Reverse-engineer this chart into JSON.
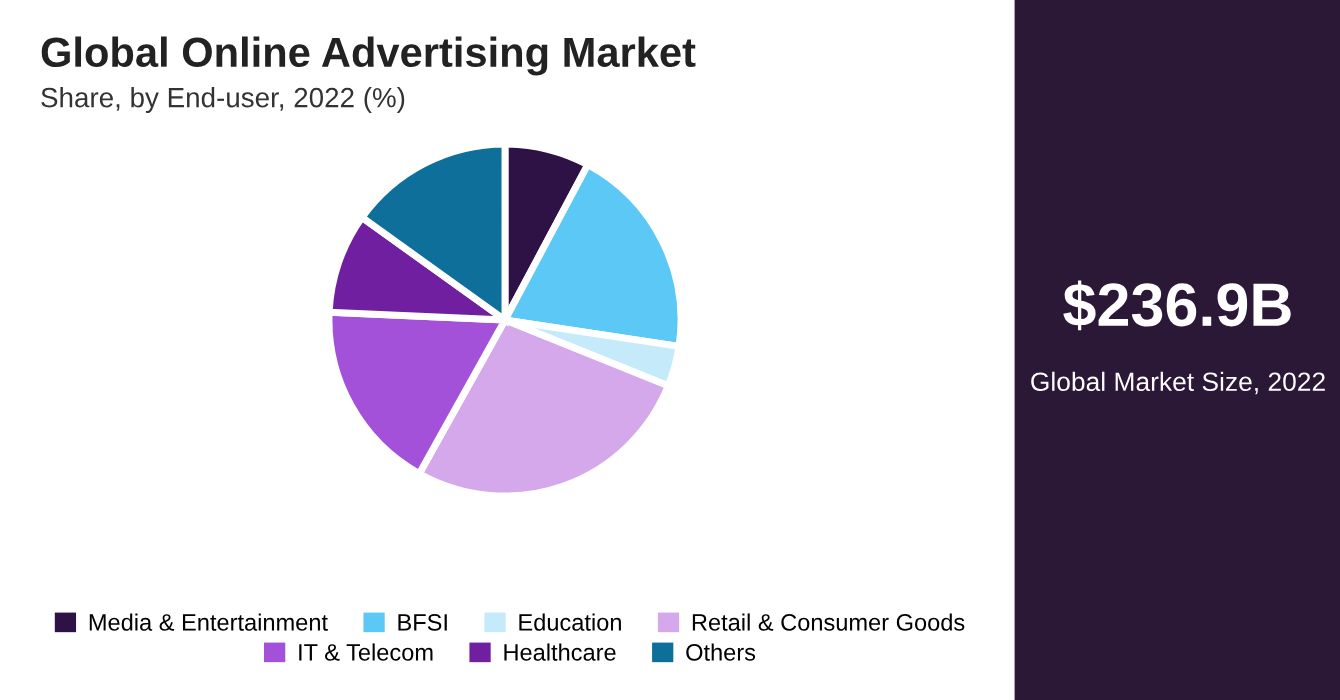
{
  "chart_data": {
    "type": "pie",
    "title": "Global Online Advertising Market",
    "subtitle": "Share, by End-user, 2022 (%)",
    "categories": [
      "Media & Entertainment",
      "BFSI",
      "Education",
      "Retail & Consumer Goods",
      "IT & Telecom",
      "Healthcare",
      "Others"
    ],
    "values": [
      7.8,
      19.6,
      3.7,
      27,
      17.6,
      9.2,
      15.1
    ],
    "colors": [
      "#2e1246",
      "#5bc8f5",
      "#c5eafa",
      "#d4a8ea",
      "#a251d8",
      "#6f1fa0",
      "#0e6f9b"
    ],
    "legend": "bottom",
    "annotations": [
      "$236.9B",
      "Global Market Size, 2022"
    ]
  }
}
